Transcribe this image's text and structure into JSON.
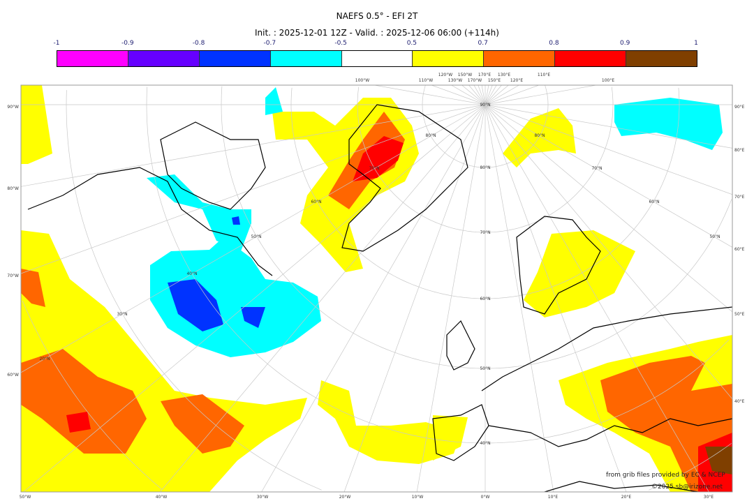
{
  "header": {
    "title": "NAEFS 0.5° - EFI 2T",
    "subtitle": "Init. : 2025-12-01 12Z - Valid. : 2025-12-06 06:00 (+114h)"
  },
  "colorbar": {
    "ticks": [
      "-1",
      "-0.9",
      "-0.8",
      "-0.7",
      "-0.5",
      "0.5",
      "0.7",
      "0.8",
      "0.9",
      "1"
    ],
    "colors": [
      "#ff00ff",
      "#6600ff",
      "#0033ff",
      "#00ffff",
      "#ffffff",
      "#ffff00",
      "#ff6600",
      "#ff0000",
      "#7f3f00"
    ]
  },
  "axes": {
    "top": [
      "100°W",
      "110°W",
      "120°W",
      "130°W",
      "150°W",
      "170°W",
      "170°E",
      "150°E",
      "130°E",
      "120°E",
      "110°E",
      "100°E"
    ],
    "left": [
      "90°W",
      "80°W",
      "70°W",
      "60°W"
    ],
    "right": [
      "90°E",
      "80°E",
      "70°E",
      "60°E",
      "50°E",
      "40°E"
    ],
    "bottom": [
      "50°W",
      "40°W",
      "30°W",
      "20°W",
      "10°W",
      "0°W",
      "10°E",
      "20°E",
      "30°E"
    ]
  },
  "latitude_labels": [
    "90°N",
    "80°N",
    "70°N",
    "60°N",
    "50°N",
    "40°N",
    "30°N",
    "20°N"
  ],
  "credits": {
    "source": "from grib files provided by EC & NCEP",
    "copyright": "©2025 sb@irizone.net"
  }
}
